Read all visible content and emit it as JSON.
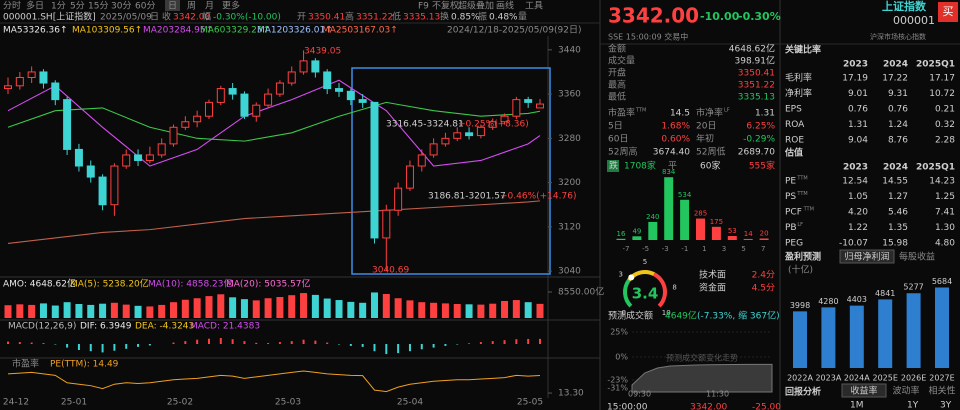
{
  "toolbar": {
    "tabs": [
      "分时",
      "多日",
      "1分",
      "5分",
      "15分",
      "30分",
      "60分",
      "日",
      "周",
      "月",
      "更多"
    ],
    "right": [
      "F9",
      "不复权",
      "超级叠加",
      "画线",
      "工具"
    ]
  },
  "info": {
    "code": "000001.SH[上证指数]",
    "date": "2025/05/09",
    "period": "日",
    "items": [
      {
        "label": "收",
        "value": "3342.00"
      },
      {
        "label": "幅",
        "value": "-0.30%(-10.00)"
      },
      {
        "label": "开",
        "value": "3350.41"
      },
      {
        "label": "高",
        "value": "3351.22"
      },
      {
        "label": "低",
        "value": "3335.13"
      },
      {
        "label": "换",
        "value": "0.85%"
      },
      {
        "label": "振",
        "value": "0.48%"
      }
    ],
    "last": "量"
  },
  "ma_row": {
    "items": [
      {
        "name": "MA5",
        "value": "3326.36↑",
        "color": "#e8e8e8"
      },
      {
        "name": "MA10",
        "value": "3309.56↑",
        "color": "#f0c419"
      },
      {
        "name": "MA20",
        "value": "3284.95↑",
        "color": "#d44cf0"
      },
      {
        "name": "MA60",
        "value": "3329.23↑",
        "color": "#3cc84a"
      },
      {
        "name": "MA120",
        "value": "3326.01↑",
        "color": "#9fc3ff"
      },
      {
        "name": "MA250",
        "value": "3167.03↑",
        "color": "#ff6a4d"
      }
    ],
    "range": "2024/12/18-2025/05/09(92日)"
  },
  "main": {
    "ylim": [
      3033,
      3465
    ],
    "yticks": [
      3440,
      3360,
      3280,
      3200,
      3120,
      3040
    ],
    "grid": false,
    "up_color": "#ff4040",
    "down_color": "#3fd4d4",
    "open": [
      3370,
      3375,
      3390,
      3400,
      3380,
      3350,
      3260,
      3230,
      3210,
      3160,
      3230,
      3250,
      3240,
      3250,
      3270,
      3300,
      3310,
      3320,
      3345,
      3370,
      3360,
      3320,
      3340,
      3360,
      3380,
      3400,
      3420,
      3400,
      3370,
      3365,
      3350,
      3345,
      3100,
      3150,
      3190,
      3230,
      3250,
      3270,
      3280,
      3290,
      3285,
      3300,
      3310,
      3320,
      3350,
      3335
    ],
    "close": [
      3375,
      3390,
      3400,
      3380,
      3350,
      3260,
      3230,
      3210,
      3160,
      3230,
      3250,
      3240,
      3250,
      3270,
      3300,
      3310,
      3320,
      3345,
      3370,
      3360,
      3320,
      3340,
      3360,
      3380,
      3400,
      3420,
      3400,
      3370,
      3365,
      3350,
      3345,
      3100,
      3150,
      3190,
      3230,
      3250,
      3270,
      3280,
      3290,
      3285,
      3300,
      3310,
      3320,
      3350,
      3345,
      3342
    ],
    "high": [
      3390,
      3400,
      3410,
      3405,
      3385,
      3355,
      3270,
      3240,
      3215,
      3235,
      3260,
      3260,
      3265,
      3280,
      3305,
      3320,
      3330,
      3350,
      3375,
      3380,
      3365,
      3345,
      3370,
      3385,
      3410,
      3439.05,
      3425,
      3405,
      3380,
      3370,
      3360,
      3345,
      3160,
      3200,
      3240,
      3260,
      3280,
      3290,
      3300,
      3300,
      3305,
      3316,
      3325,
      3355,
      3355,
      3351.22
    ],
    "low": [
      3360,
      3368,
      3380,
      3370,
      3340,
      3250,
      3220,
      3200,
      3150,
      3140,
      3225,
      3230,
      3235,
      3245,
      3265,
      3295,
      3300,
      3315,
      3340,
      3350,
      3315,
      3310,
      3335,
      3355,
      3375,
      3395,
      3390,
      3360,
      3355,
      3340,
      3335,
      3090,
      3040.69,
      3140,
      3185,
      3220,
      3245,
      3265,
      3275,
      3278,
      3280,
      3295,
      3305,
      3315,
      3335,
      3335.13
    ],
    "lines": [
      {
        "name": "MA20",
        "color": "#d44cf0",
        "x": [
          0,
          4,
          8,
          12,
          16,
          20,
          24,
          28,
          32,
          36,
          40,
          44,
          45
        ],
        "values": [
          3330,
          3375,
          3300,
          3230,
          3260,
          3320,
          3350,
          3385,
          3330,
          3230,
          3240,
          3270,
          3285
        ]
      },
      {
        "name": "MA60",
        "color": "#3cc84a",
        "x": [
          0,
          4,
          8,
          12,
          16,
          20,
          24,
          28,
          32,
          36,
          40,
          44,
          45
        ],
        "values": [
          3300,
          3330,
          3335,
          3300,
          3280,
          3275,
          3290,
          3320,
          3345,
          3330,
          3320,
          3325,
          3329
        ]
      },
      {
        "name": "MA250",
        "color": "#c0604a",
        "x": [
          0,
          4,
          8,
          12,
          16,
          20,
          24,
          28,
          32,
          36,
          40,
          44,
          45
        ],
        "values": [
          3090,
          3100,
          3110,
          3115,
          3125,
          3135,
          3140,
          3145,
          3150,
          3155,
          3160,
          3165,
          3167
        ]
      }
    ],
    "annotations": {
      "peak": "3439.05",
      "trough": "3040.69",
      "range1": "3316.45-3324.81",
      "change1": "+0.25%(+8.36)",
      "range2": "3186.81-3201.57",
      "change2": "+0.46%(+14.76)"
    },
    "xlabels": [
      "24-12",
      "25-01",
      "25-02",
      "25-03",
      "25-04",
      "25-05"
    ]
  },
  "amo": {
    "items": [
      "AMO: 4648.62亿",
      "MA(5): 5238.20亿",
      "MA(10): 4858.23亿",
      "MA(20): 5035.57亿"
    ],
    "colors": [
      "#e8e8e8",
      "#f0c419",
      "#d44cf0",
      "#ff6ad5"
    ],
    "ylim": [
      0,
      8550
    ],
    "yticks": [
      {
        "value": 8550,
        "label": "8550.00亿"
      }
    ],
    "values": [
      4200,
      4500,
      4300,
      4800,
      4100,
      5200,
      4600,
      4300,
      4700,
      5000,
      4400,
      4000,
      3800,
      4300,
      5200,
      6000,
      6500,
      7200,
      7800,
      6800,
      6200,
      5800,
      6500,
      6900,
      7500,
      8200,
      7600,
      6400,
      5900,
      5300,
      5000,
      8400,
      7900,
      6500,
      5800,
      5200,
      5000,
      4800,
      4600,
      4500,
      4400,
      4700,
      5600,
      5900,
      5200,
      4648.62
    ]
  },
  "macd": {
    "items": [
      "MACD(12,26,9)",
      "DIF: 6.3949",
      "DEA: -4.3243",
      "MACD: 21.4383"
    ],
    "colors": [
      "#bbbbbb",
      "#e8e8e8",
      "#f0c419",
      "#d44cf0"
    ],
    "ylim": [
      -50,
      50
    ],
    "values": [
      10,
      8,
      6,
      4,
      -2,
      -15,
      -25,
      -30,
      -35,
      -28,
      -20,
      -12,
      -6,
      0,
      6,
      12,
      18,
      22,
      25,
      20,
      12,
      5,
      4,
      8,
      12,
      18,
      14,
      6,
      -2,
      -8,
      -12,
      -30,
      -42,
      -38,
      -30,
      -22,
      -15,
      -8,
      -2,
      3,
      8,
      12,
      16,
      20,
      21,
      21.4383
    ]
  },
  "pe": {
    "title": "市盈率",
    "item": "PE(TTM): 14.49",
    "color": "#f0a020",
    "ylim": [
      13.1,
      15.0
    ],
    "yticks": [
      {
        "value": 13.3,
        "label": "13.30"
      }
    ],
    "values": [
      14.6,
      14.65,
      14.7,
      14.6,
      14.5,
      14.0,
      13.9,
      13.8,
      13.6,
      13.9,
      14.0,
      13.95,
      14.0,
      14.1,
      14.2,
      14.25,
      14.3,
      14.4,
      14.5,
      14.45,
      14.3,
      14.4,
      14.5,
      14.6,
      14.7,
      14.8,
      14.7,
      14.6,
      14.55,
      14.5,
      14.48,
      13.5,
      13.4,
      13.7,
      13.9,
      14.0,
      14.1,
      14.15,
      14.2,
      14.2,
      14.25,
      14.3,
      14.35,
      14.5,
      14.45,
      14.49
    ]
  },
  "quote": {
    "price": "3342.00",
    "change": "-10.00",
    "pct": "-0.30%",
    "status": "SSE 15:00:09 交易中",
    "rows": [
      {
        "label": "金额",
        "value": "4648.62亿"
      },
      {
        "label": "成交量",
        "value": "398.91亿"
      },
      {
        "label": "开盘",
        "value": "3350.41"
      },
      {
        "label": "最高",
        "value": "3351.22"
      },
      {
        "label": "最低",
        "value": "3335.13"
      }
    ],
    "pairs": [
      [
        {
          "label": "市盈率",
          "sup": "TTM",
          "value": "14.5"
        },
        {
          "label": "市净率",
          "sup": "LF",
          "value": "1.31"
        }
      ],
      [
        {
          "label": "5日",
          "value": "1.68%"
        },
        {
          "label": "20日",
          "value": "6.25%"
        }
      ],
      [
        {
          "label": "60日",
          "value": "0.60%"
        },
        {
          "label": "年初",
          "value": "-0.29%"
        }
      ],
      [
        {
          "label": "52周高",
          "value": "3674.40"
        },
        {
          "label": "52周低",
          "value": "2689.70"
        }
      ]
    ],
    "breadth": {
      "down_label": "跌",
      "down": "1708家",
      "flat_label": "平",
      "flat": "60家",
      "up": "555家"
    }
  },
  "dist": {
    "values": [
      16,
      49,
      240,
      834,
      534,
      285,
      175,
      53,
      14,
      20
    ],
    "colors": [
      "#22c55e",
      "#22c55e",
      "#22c55e",
      "#22c55e",
      "#22c55e",
      "#ff4040",
      "#ff4040",
      "#ff4040",
      "#ff4040",
      "#ff4040"
    ],
    "ylim": [
      0,
      850
    ],
    "axis_labels": [
      "-7",
      "-5",
      "-3",
      "-1",
      "1",
      "3",
      "5",
      "7"
    ]
  },
  "gauge": {
    "score": 3.4,
    "ticks": [
      0,
      3,
      5,
      8,
      10
    ],
    "items": [
      {
        "label": "技术面",
        "value": "2.4分"
      },
      {
        "label": "资金面",
        "value": "4.5分"
      }
    ]
  },
  "forecast": {
    "title": "预测成交额",
    "value": "4649亿",
    "detail": "(-7.33%, 缩 367亿)",
    "watermark": "预测成交额变化走势",
    "ylim": [
      -31,
      25
    ],
    "yticks": [
      {
        "value": 25,
        "label": "25%"
      },
      {
        "value": 0,
        "label": "0%"
      },
      {
        "value": -23,
        "label": "-23%"
      },
      {
        "value": -31,
        "label": "-31%"
      }
    ],
    "xticks": [
      "09:30",
      "11:30"
    ],
    "values": [
      -28,
      -16,
      -11,
      -9,
      -8.5,
      -8,
      -7.8,
      -7.6,
      -7.5,
      -7.4,
      -7.35,
      -7.33
    ],
    "last_row": [
      "15:00:00",
      "3342.00",
      "-25.00"
    ]
  },
  "side": {
    "name": "上证指数",
    "code": "000001",
    "buy": "买",
    "tag": "沪深市场核心指数",
    "ratios": {
      "title": "关键比率",
      "cols": [
        "2023",
        "2024",
        "2025Q1"
      ],
      "rows": [
        {
          "label": "毛利率",
          "values": [
            "17.19",
            "17.22",
            "17.17"
          ]
        },
        {
          "label": "净利率",
          "values": [
            "9.01",
            "9.31",
            "10.72"
          ]
        },
        {
          "label": "EPS",
          "values": [
            "0.76",
            "0.76",
            "0.21"
          ]
        },
        {
          "label": "ROA",
          "values": [
            "1.31",
            "1.24",
            "0.32"
          ]
        },
        {
          "label": "ROE",
          "values": [
            "9.04",
            "8.76",
            "2.28"
          ]
        }
      ]
    },
    "valuation": {
      "title": "估值",
      "cols": [
        "2023",
        "2024",
        "2025Q1"
      ],
      "rows": [
        {
          "label": "PE",
          "sup": "TTM",
          "values": [
            "12.54",
            "14.55",
            "14.23"
          ]
        },
        {
          "label": "PS",
          "sup": "TTM",
          "values": [
            "1.05",
            "1.27",
            "1.25"
          ]
        },
        {
          "label": "PCF",
          "sup": "TTM",
          "values": [
            "4.20",
            "5.46",
            "7.41"
          ]
        },
        {
          "label": "PB",
          "sup": "LF",
          "values": [
            "1.22",
            "1.35",
            "1.30"
          ]
        },
        {
          "label": "PEG",
          "values": [
            "-10.07",
            "15.98",
            "4.80"
          ]
        }
      ]
    },
    "profit": {
      "title": "盈利预测",
      "tabs": [
        "归母净利润",
        "每股收益"
      ],
      "unit": "(十亿)",
      "color": "#2f7fd0",
      "ylim": [
        0,
        6000
      ],
      "categories": [
        "2022A",
        "2023A",
        "2024A",
        "2025E",
        "2026E",
        "2027E"
      ],
      "values": [
        3998,
        4280,
        4403,
        4841,
        5277,
        5684
      ]
    },
    "returns": {
      "title": "回报分析",
      "tabs": [
        "收益率",
        "波动率",
        "相关性"
      ],
      "periods": [
        "1M",
        "1Y",
        "3Y"
      ]
    }
  }
}
